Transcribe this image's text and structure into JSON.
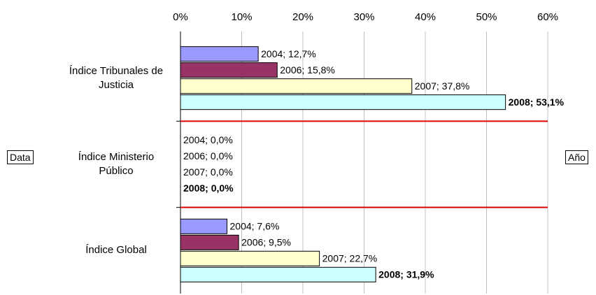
{
  "chart_data": {
    "type": "hbar",
    "categories": [
      "Índice Tribunales de Justicia",
      "Índice Ministerio Público",
      "Índice Global"
    ],
    "series": [
      {
        "name": "2004",
        "color": "#9999ff",
        "values": [
          12.7,
          0.0,
          7.6
        ],
        "value_labels": [
          "2004; 12,7%",
          "2004; 0,0%",
          "2004; 7,6%"
        ]
      },
      {
        "name": "2006",
        "color": "#993366",
        "values": [
          15.8,
          0.0,
          9.5
        ],
        "value_labels": [
          "2006; 15,8%",
          "2006; 0,0%",
          "2006; 9,5%"
        ]
      },
      {
        "name": "2007",
        "color": "#ffffcc",
        "values": [
          37.8,
          0.0,
          22.7
        ],
        "value_labels": [
          "2007; 37,8%",
          "2007; 0,0%",
          "2007; 22,7%"
        ]
      },
      {
        "name": "2008",
        "color": "#ccffff",
        "values": [
          53.1,
          0.0,
          31.9
        ],
        "value_labels": [
          "2008; 53,1%",
          "2008; 0,0%",
          "2008; 31,9%"
        ]
      }
    ],
    "xlim": [
      0,
      60
    ],
    "xticks": [
      {
        "value": 0,
        "label": "0%"
      },
      {
        "value": 10,
        "label": "10%"
      },
      {
        "value": 20,
        "label": "20%"
      },
      {
        "value": 30,
        "label": "30%"
      },
      {
        "value": 40,
        "label": "40%"
      },
      {
        "value": 50,
        "label": "50%"
      },
      {
        "value": 60,
        "label": "60%"
      }
    ],
    "grid": true,
    "row_field": "Data",
    "series_field": "Año"
  }
}
